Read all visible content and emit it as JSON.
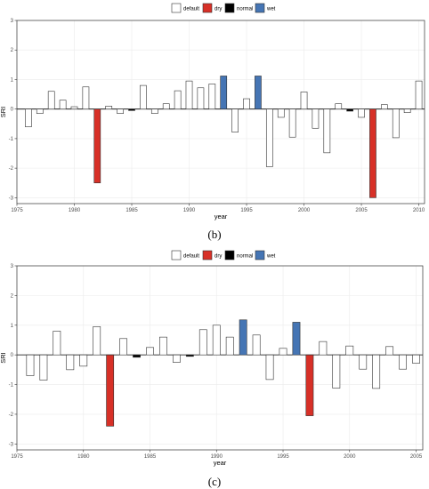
{
  "legend": {
    "default": {
      "label": "default",
      "color": "#ffffff"
    },
    "dry": {
      "label": "dry",
      "color": "#d73027"
    },
    "normal": {
      "label": "normal",
      "color": "#000000"
    },
    "wet": {
      "label": "wet",
      "color": "#4575b4"
    }
  },
  "chart_data": [
    {
      "type": "bar",
      "panel_label": "(b)",
      "xlabel": "year",
      "ylabel": "SRI",
      "xlim": [
        1975,
        2010.5
      ],
      "ylim": [
        -3.2,
        3
      ],
      "xticks": [
        1975,
        1980,
        1985,
        1990,
        1995,
        2000,
        2005,
        2010
      ],
      "yticks": [
        -3,
        -2,
        -1,
        0,
        1,
        2,
        3
      ],
      "grid": true,
      "legend_position": "top",
      "x": [
        1976,
        1977,
        1978,
        1979,
        1980,
        1981,
        1982,
        1983,
        1984,
        1985,
        1986,
        1987,
        1988,
        1989,
        1990,
        1991,
        1992,
        1993,
        1994,
        1995,
        1996,
        1997,
        1998,
        1999,
        2000,
        2001,
        2002,
        2003,
        2004,
        2005,
        2006,
        2007,
        2008,
        2009,
        2010
      ],
      "values": [
        -0.6,
        -0.15,
        0.6,
        0.3,
        0.08,
        0.75,
        -2.5,
        0.1,
        -0.15,
        -0.05,
        0.8,
        -0.15,
        0.18,
        0.62,
        0.95,
        0.72,
        0.85,
        1.12,
        -0.78,
        0.35,
        1.12,
        -1.95,
        -0.28,
        -0.95,
        0.58,
        -0.65,
        -1.48,
        0.18,
        -0.07,
        -0.28,
        -3.0,
        0.15,
        -0.97,
        -0.12,
        0.95
      ],
      "class": [
        "default",
        "default",
        "default",
        "default",
        "default",
        "default",
        "dry",
        "default",
        "default",
        "normal",
        "default",
        "default",
        "default",
        "default",
        "default",
        "default",
        "default",
        "wet",
        "default",
        "default",
        "wet",
        "default",
        "default",
        "default",
        "default",
        "default",
        "default",
        "default",
        "normal",
        "default",
        "dry",
        "default",
        "default",
        "default",
        "default"
      ]
    },
    {
      "type": "bar",
      "panel_label": "(c)",
      "xlabel": "year",
      "ylabel": "SRI",
      "xlim": [
        1975,
        2005.5
      ],
      "ylim": [
        -3.2,
        3
      ],
      "xticks": [
        1975,
        1980,
        1985,
        1990,
        1995,
        2000,
        2005
      ],
      "yticks": [
        -3,
        -2,
        -1,
        0,
        1,
        2,
        3
      ],
      "grid": true,
      "legend_position": "top",
      "x": [
        1976,
        1977,
        1978,
        1979,
        1980,
        1981,
        1982,
        1983,
        1984,
        1985,
        1986,
        1987,
        1988,
        1989,
        1990,
        1991,
        1992,
        1993,
        1994,
        1995,
        1996,
        1997,
        1998,
        1999,
        2000,
        2001,
        2002,
        2003,
        2004,
        2005
      ],
      "values": [
        -0.7,
        -0.85,
        0.8,
        -0.5,
        -0.38,
        0.95,
        -2.4,
        0.55,
        -0.08,
        0.25,
        0.6,
        -0.25,
        -0.05,
        0.85,
        1.0,
        0.6,
        1.18,
        0.67,
        -0.83,
        0.22,
        1.1,
        -2.05,
        0.45,
        -1.12,
        0.3,
        -0.48,
        -1.13,
        0.28,
        -0.48,
        -0.28
      ],
      "class": [
        "default",
        "default",
        "default",
        "default",
        "default",
        "default",
        "dry",
        "default",
        "normal",
        "default",
        "default",
        "default",
        "normal",
        "default",
        "default",
        "default",
        "wet",
        "default",
        "default",
        "default",
        "wet",
        "dry",
        "default",
        "default",
        "default",
        "default",
        "default",
        "default",
        "default",
        "default"
      ]
    }
  ]
}
